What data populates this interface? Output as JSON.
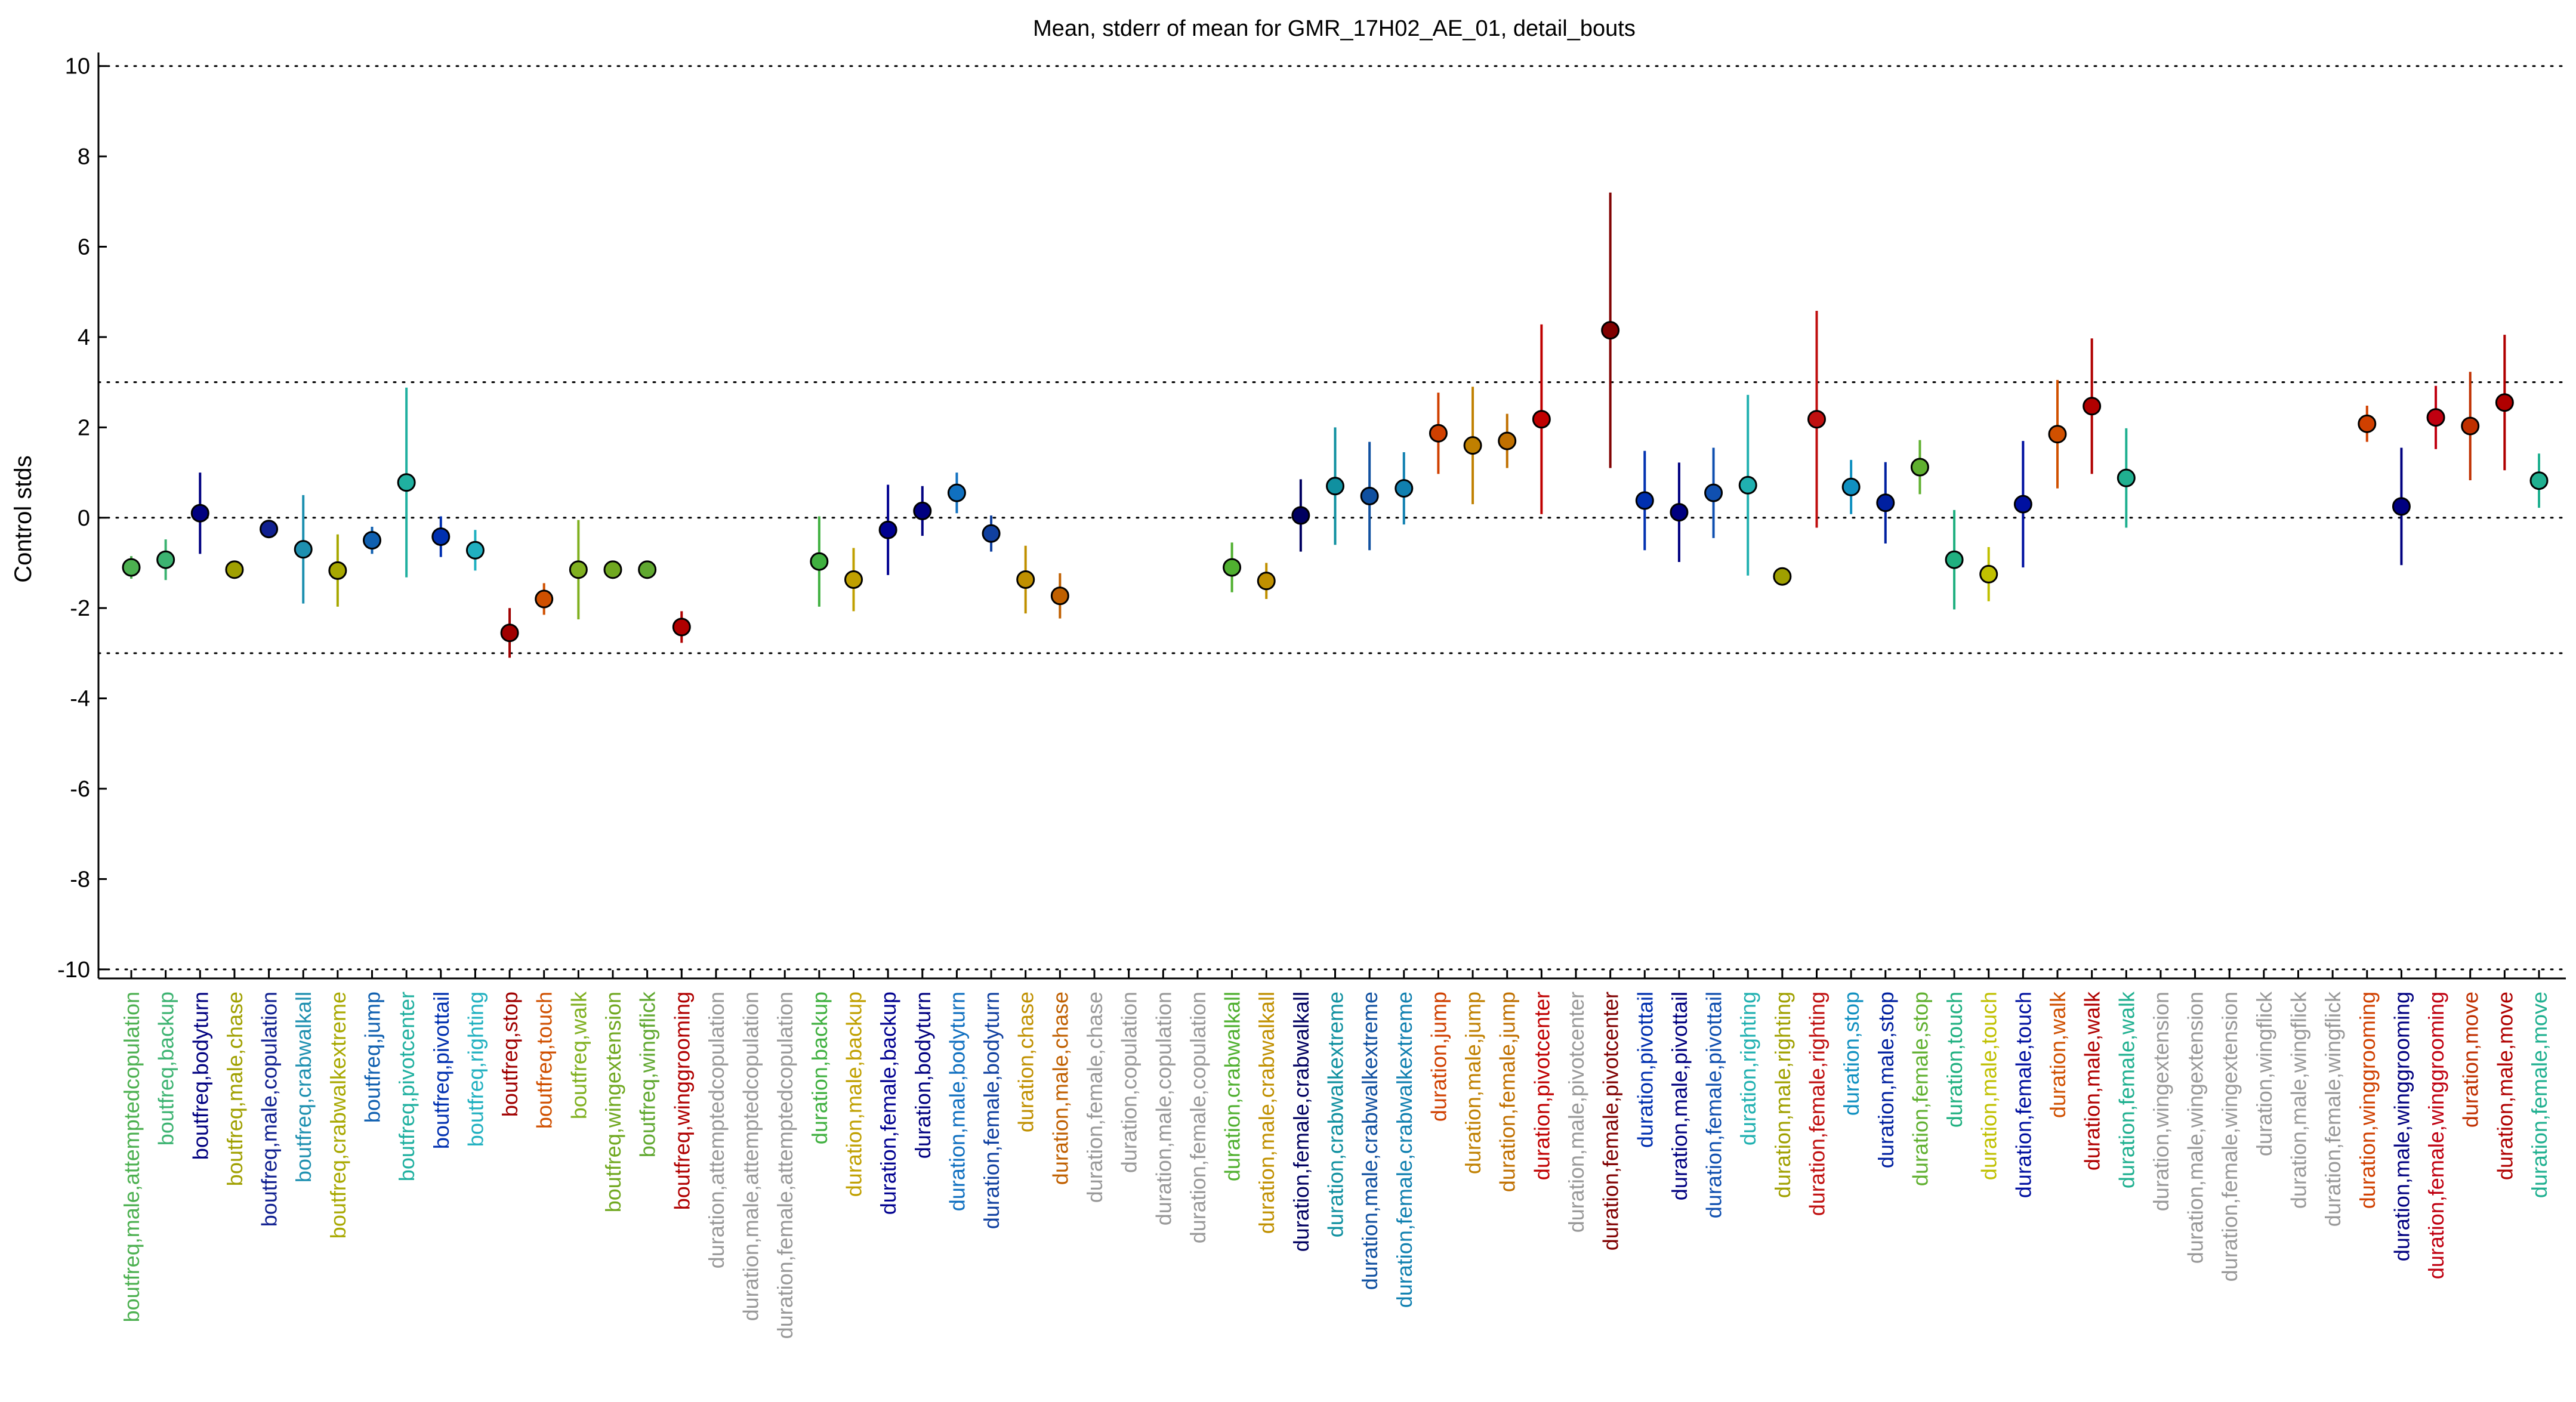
{
  "chart_data": {
    "type": "scatter",
    "title": "Mean, stderr of mean for GMR_17H02_AE_01, detail_bouts",
    "xlabel": "",
    "ylabel": "Control stds",
    "ylim": [
      -10.2,
      10.3
    ],
    "yticks": [
      10,
      8,
      6,
      4,
      2,
      0,
      -2,
      -4,
      -6,
      -8,
      -10
    ],
    "reference_lines": [
      10,
      3,
      0,
      -3,
      -10
    ],
    "grid": false,
    "legend": "none",
    "categories": [
      {
        "label": "boutfreq,male,attemptedcopulation",
        "color": "#4cb050"
      },
      {
        "label": "boutfreq,backup",
        "color": "#3cb371"
      },
      {
        "label": "boutfreq,bodyturn",
        "color": "#000080"
      },
      {
        "label": "boutfreq,male,chase",
        "color": "#a0a000"
      },
      {
        "label": "boutfreq,male,copulation",
        "color": "#102090"
      },
      {
        "label": "boutfreq,crabwalkall",
        "color": "#1e90b0"
      },
      {
        "label": "boutfreq,crabwalkextreme",
        "color": "#a8a800"
      },
      {
        "label": "boutfreq,jump",
        "color": "#1060b0"
      },
      {
        "label": "boutfreq,pivotcenter",
        "color": "#20b0a0"
      },
      {
        "label": "boutfreq,pivottail",
        "color": "#0030b0"
      },
      {
        "label": "boutfreq,righting",
        "color": "#20b0c0"
      },
      {
        "label": "boutfreq,stop",
        "color": "#a00000"
      },
      {
        "label": "boutfreq,touch",
        "color": "#d05000"
      },
      {
        "label": "boutfreq,walk",
        "color": "#80b020"
      },
      {
        "label": "boutfreq,wingextension",
        "color": "#70a820"
      },
      {
        "label": "boutfreq,wingflick",
        "color": "#60a830"
      },
      {
        "label": "boutfreq,winggrooming",
        "color": "#b00000"
      },
      {
        "label": "duration,attemptedcopulation",
        "color": "#999999"
      },
      {
        "label": "duration,male,attemptedcopulation",
        "color": "#999999"
      },
      {
        "label": "duration,female,attemptedcopulation",
        "color": "#999999"
      },
      {
        "label": "duration,backup",
        "color": "#40b040"
      },
      {
        "label": "duration,male,backup",
        "color": "#c0a000"
      },
      {
        "label": "duration,female,backup",
        "color": "#000090"
      },
      {
        "label": "duration,bodyturn",
        "color": "#000080"
      },
      {
        "label": "duration,male,bodyturn",
        "color": "#1070c0"
      },
      {
        "label": "duration,female,bodyturn",
        "color": "#1040a0"
      },
      {
        "label": "duration,chase",
        "color": "#c09000"
      },
      {
        "label": "duration,male,chase",
        "color": "#c06000"
      },
      {
        "label": "duration,female,chase",
        "color": "#999999"
      },
      {
        "label": "duration,copulation",
        "color": "#999999"
      },
      {
        "label": "duration,male,copulation",
        "color": "#999999"
      },
      {
        "label": "duration,female,copulation",
        "color": "#999999"
      },
      {
        "label": "duration,crabwalkall",
        "color": "#50b030"
      },
      {
        "label": "duration,male,crabwalkall",
        "color": "#c09000"
      },
      {
        "label": "duration,female,crabwalkall",
        "color": "#000060"
      },
      {
        "label": "duration,crabwalkextreme",
        "color": "#1090a0"
      },
      {
        "label": "duration,male,crabwalkextreme",
        "color": "#1050a0"
      },
      {
        "label": "duration,female,crabwalkextreme",
        "color": "#1080b0"
      },
      {
        "label": "duration,jump",
        "color": "#d04000"
      },
      {
        "label": "duration,male,jump",
        "color": "#c08000"
      },
      {
        "label": "duration,female,jump",
        "color": "#c07000"
      },
      {
        "label": "duration,pivotcenter",
        "color": "#c00000"
      },
      {
        "label": "duration,male,pivotcenter",
        "color": "#999999"
      },
      {
        "label": "duration,female,pivotcenter",
        "color": "#800000"
      },
      {
        "label": "duration,pivottail",
        "color": "#0030b0"
      },
      {
        "label": "duration,male,pivottail",
        "color": "#000080"
      },
      {
        "label": "duration,female,pivottail",
        "color": "#1050b0"
      },
      {
        "label": "duration,righting",
        "color": "#20b0b0"
      },
      {
        "label": "duration,male,righting",
        "color": "#a0a000"
      },
      {
        "label": "duration,female,righting",
        "color": "#c01010"
      },
      {
        "label": "duration,stop",
        "color": "#1090c0"
      },
      {
        "label": "duration,male,stop",
        "color": "#0020a0"
      },
      {
        "label": "duration,female,stop",
        "color": "#60b030"
      },
      {
        "label": "duration,touch",
        "color": "#20b080"
      },
      {
        "label": "duration,male,touch",
        "color": "#c0c000"
      },
      {
        "label": "duration,female,touch",
        "color": "#0010a0"
      },
      {
        "label": "duration,walk",
        "color": "#d05000"
      },
      {
        "label": "duration,male,walk",
        "color": "#b00000"
      },
      {
        "label": "duration,female,walk",
        "color": "#20b090"
      },
      {
        "label": "duration,wingextension",
        "color": "#999999"
      },
      {
        "label": "duration,male,wingextension",
        "color": "#999999"
      },
      {
        "label": "duration,female,wingextension",
        "color": "#999999"
      },
      {
        "label": "duration,wingflick",
        "color": "#999999"
      },
      {
        "label": "duration,male,wingflick",
        "color": "#999999"
      },
      {
        "label": "duration,female,wingflick",
        "color": "#999999"
      },
      {
        "label": "duration,winggrooming",
        "color": "#d04000"
      },
      {
        "label": "duration,male,winggrooming",
        "color": "#000080"
      },
      {
        "label": "duration,female,winggrooming",
        "color": "#c00010"
      },
      {
        "label": "duration,move",
        "color": "#c03000"
      },
      {
        "label": "duration,male,move",
        "color": "#b00000"
      },
      {
        "label": "duration,female,move",
        "color": "#20b090"
      }
    ],
    "means": [
      -1.1,
      -0.93,
      0.1,
      -1.15,
      -0.25,
      -0.7,
      -1.17,
      -0.5,
      0.78,
      -0.42,
      -0.72,
      -2.55,
      -1.8,
      -1.15,
      -1.15,
      -1.15,
      -2.42,
      null,
      null,
      null,
      -0.97,
      -1.37,
      -0.27,
      0.15,
      0.55,
      -0.35,
      -1.37,
      -1.73,
      null,
      null,
      null,
      null,
      -1.1,
      -1.4,
      0.05,
      0.7,
      0.48,
      0.65,
      1.87,
      1.6,
      1.7,
      2.18,
      null,
      4.15,
      0.38,
      0.12,
      0.55,
      0.72,
      -1.3,
      2.18,
      0.68,
      0.33,
      1.12,
      -0.93,
      -1.25,
      0.3,
      1.85,
      2.47,
      0.88,
      null,
      null,
      null,
      null,
      null,
      null,
      2.08,
      0.25,
      2.22,
      2.03,
      2.55,
      0.82
    ],
    "stderr": [
      0.25,
      0.45,
      0.9,
      0.12,
      0.1,
      1.2,
      0.8,
      0.3,
      2.1,
      0.45,
      0.45,
      0.55,
      0.35,
      1.1,
      0.1,
      0.1,
      0.35,
      null,
      null,
      null,
      1.0,
      0.7,
      1.0,
      0.55,
      0.45,
      0.4,
      0.75,
      0.5,
      null,
      null,
      null,
      null,
      0.55,
      0.4,
      0.8,
      1.3,
      1.2,
      0.8,
      0.9,
      1.3,
      0.6,
      2.1,
      null,
      3.05,
      1.1,
      1.1,
      1.0,
      2.0,
      0.1,
      2.4,
      0.6,
      0.9,
      0.6,
      1.1,
      0.6,
      1.4,
      1.2,
      1.5,
      1.1,
      null,
      null,
      null,
      null,
      null,
      null,
      0.4,
      1.3,
      0.7,
      1.2,
      1.5,
      0.6
    ]
  }
}
